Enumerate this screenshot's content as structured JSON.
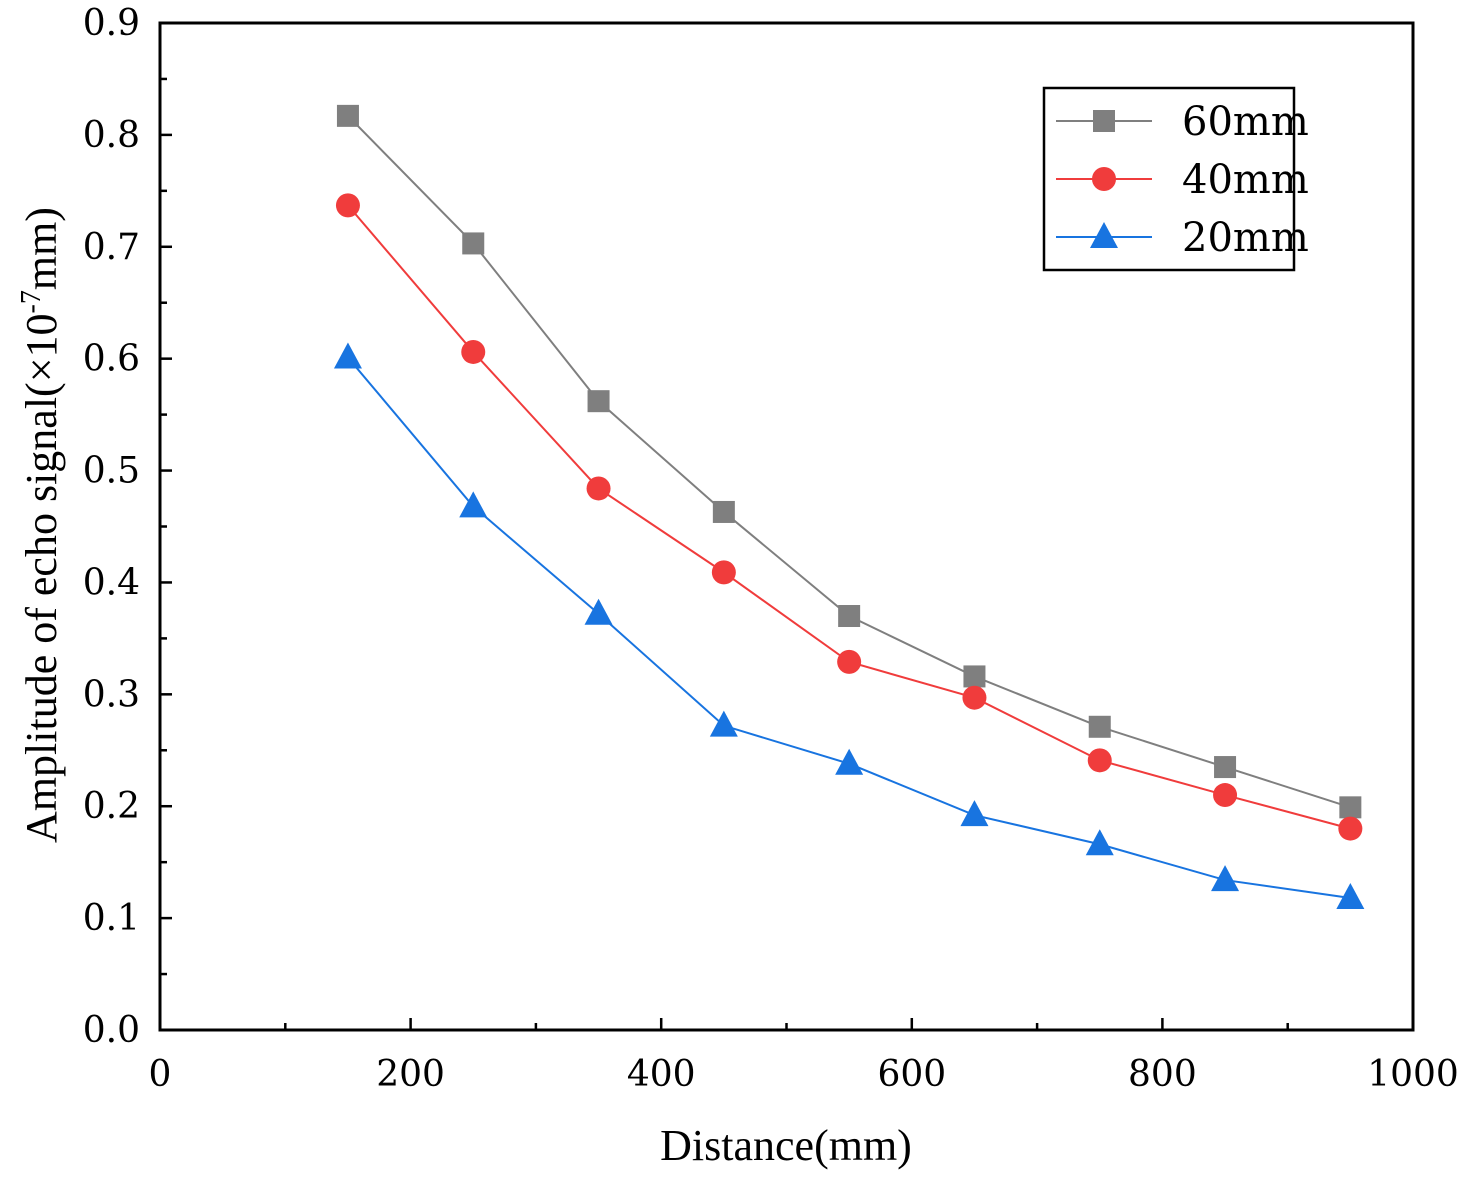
{
  "chart_data": {
    "type": "line",
    "xlabel": "Distance(mm)",
    "ylabel": {
      "prefix": "Amplitude of echo signal(×10",
      "superscript": "-7",
      "suffix": "mm)"
    },
    "xlim": [
      0,
      1000
    ],
    "ylim": [
      0.0,
      0.9
    ],
    "x_ticks": [
      0,
      200,
      400,
      600,
      800,
      1000
    ],
    "y_ticks": [
      0.0,
      0.1,
      0.2,
      0.3,
      0.4,
      0.5,
      0.6,
      0.7,
      0.8,
      0.9
    ],
    "x_tick_labels": [
      "0",
      "200",
      "400",
      "600",
      "800",
      "1000"
    ],
    "y_tick_labels": [
      "0.0",
      "0.1",
      "0.2",
      "0.3",
      "0.4",
      "0.5",
      "0.6",
      "0.7",
      "0.8",
      "0.9"
    ],
    "x": [
      150,
      250,
      350,
      450,
      550,
      650,
      750,
      850,
      950
    ],
    "grid": false,
    "legend_position": "top-right",
    "series": [
      {
        "name": "60mm",
        "marker": "square",
        "color": "#7f7f7f",
        "values": [
          0.817,
          0.703,
          0.562,
          0.463,
          0.37,
          0.316,
          0.271,
          0.235,
          0.199
        ]
      },
      {
        "name": "40mm",
        "marker": "circle",
        "color": "#f03c3c",
        "values": [
          0.737,
          0.606,
          0.484,
          0.409,
          0.329,
          0.297,
          0.241,
          0.21,
          0.18
        ]
      },
      {
        "name": "20mm",
        "marker": "triangle",
        "color": "#1874e0",
        "values": [
          0.601,
          0.468,
          0.372,
          0.272,
          0.238,
          0.192,
          0.166,
          0.134,
          0.118
        ]
      }
    ]
  }
}
